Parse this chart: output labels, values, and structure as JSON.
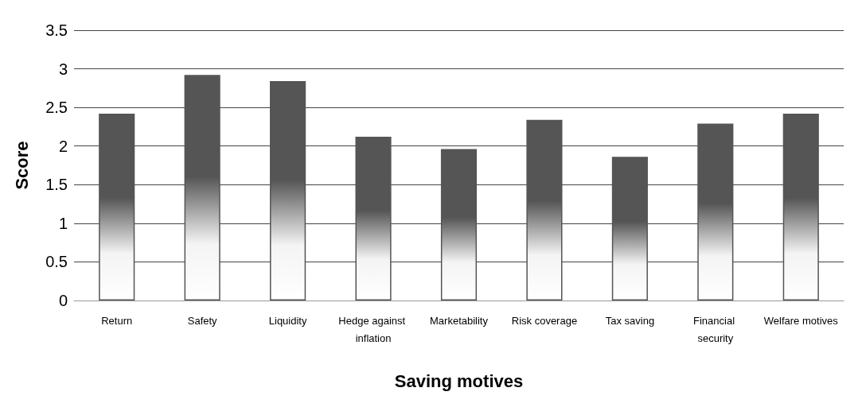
{
  "chart_data": {
    "type": "bar",
    "xlabel": "Saving motives",
    "ylabel": "Score",
    "categories": [
      "Return",
      "Safety",
      "Liquidity",
      "Hedge against inflation",
      "Marketability",
      "Risk coverage",
      "Tax saving",
      "Financial security",
      "Welfare motives"
    ],
    "values": [
      2.42,
      2.92,
      2.84,
      2.12,
      1.96,
      2.34,
      1.86,
      2.29,
      2.42
    ],
    "color": "#555555",
    "ylim": [
      0,
      3.5
    ],
    "yticks": [
      0,
      0.5,
      1,
      1.5,
      2,
      2.5,
      3,
      3.5
    ],
    "grid": "y"
  }
}
